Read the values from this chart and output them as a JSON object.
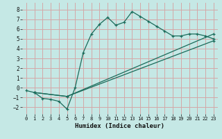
{
  "xlabel": "Humidex (Indice chaleur)",
  "bg_color": "#c5e8e5",
  "grid_color": "#d4a8a8",
  "line_color": "#1a6b5a",
  "xlim": [
    -0.5,
    23.5
  ],
  "ylim": [
    -2.7,
    8.7
  ],
  "xticks": [
    0,
    1,
    2,
    3,
    4,
    5,
    6,
    7,
    8,
    9,
    10,
    11,
    12,
    13,
    14,
    15,
    16,
    17,
    18,
    19,
    20,
    21,
    22,
    23
  ],
  "yticks": [
    -2,
    -1,
    0,
    1,
    2,
    3,
    4,
    5,
    6,
    7,
    8
  ],
  "line1_x": [
    0,
    1,
    2,
    3,
    4,
    5,
    6,
    7,
    8,
    9,
    10,
    11,
    12,
    13,
    14,
    15,
    16,
    17,
    18,
    19,
    20,
    21,
    22,
    23
  ],
  "line1_y": [
    -0.3,
    -0.5,
    -1.1,
    -1.2,
    -1.4,
    -2.2,
    0.0,
    3.6,
    5.5,
    6.5,
    7.2,
    6.4,
    6.7,
    7.8,
    7.3,
    6.8,
    6.3,
    5.8,
    5.3,
    5.3,
    5.5,
    5.5,
    5.3,
    5.0
  ],
  "line2_x": [
    1,
    5,
    23
  ],
  "line2_y": [
    -0.5,
    -0.9,
    5.5
  ],
  "line3_x": [
    1,
    5,
    23
  ],
  "line3_y": [
    -0.5,
    -0.9,
    4.8
  ]
}
